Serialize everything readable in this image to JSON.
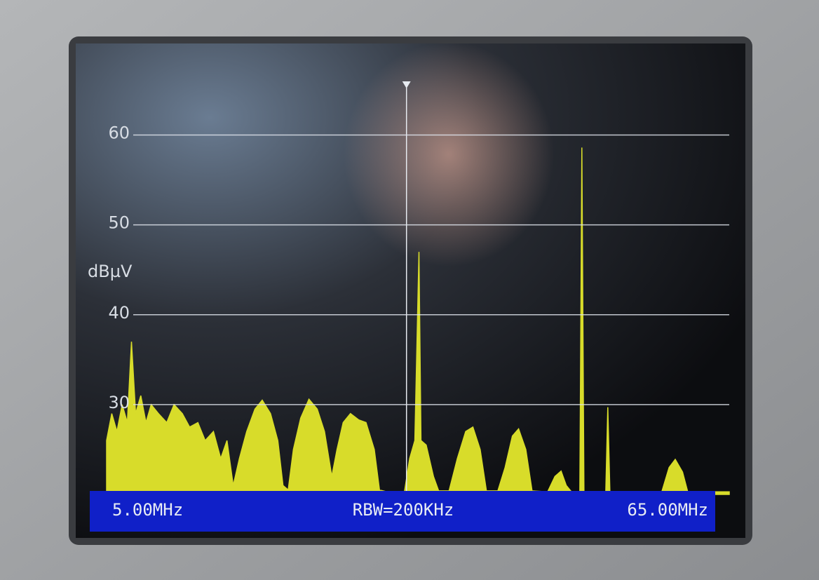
{
  "chart_data": {
    "type": "area",
    "y_label": "dBµV",
    "annotation": "RBW=200KHz",
    "xlim": [
      5,
      65
    ],
    "xticks": [
      {
        "value": 5,
        "label": "5.00MHz"
      },
      {
        "value": 65,
        "label": "65.00MHz"
      }
    ],
    "ylim": [
      20,
      68
    ],
    "yticks": [
      30,
      40,
      50,
      60
    ],
    "grid": true,
    "marker": 33.9,
    "color": "#d8dc2a",
    "x": [
      5,
      5.5,
      6,
      6.5,
      7,
      7.4,
      7.8,
      8.3,
      8.8,
      9.3,
      10,
      10.8,
      11.5,
      12.3,
      13,
      13.8,
      14.5,
      15.3,
      16,
      16.6,
      17.2,
      17.8,
      18.5,
      19.3,
      20,
      20.8,
      21.5,
      22,
      22.5,
      23,
      23.7,
      24.5,
      25.3,
      26,
      26.7,
      27.2,
      27.8,
      28.5,
      29.3,
      30,
      30.8,
      31.3,
      32,
      33,
      33.7,
      34.2,
      34.7,
      35.1,
      35.3,
      35.8,
      36.5,
      37,
      38,
      38.8,
      39.6,
      40.3,
      41,
      41.6,
      42.7,
      43.4,
      44.1,
      44.7,
      45.4,
      46,
      47.5,
      48.2,
      48.8,
      49.3,
      49.8,
      50.6,
      50.8,
      51,
      53.1,
      53.3,
      53.5,
      58.5,
      59.2,
      59.8,
      60.5,
      61,
      65
    ],
    "values": [
      26,
      29,
      27,
      30,
      28,
      37,
      29,
      31,
      28,
      30,
      29,
      28,
      30,
      29,
      27.5,
      28,
      26,
      27,
      24,
      26,
      21,
      24,
      27,
      29.5,
      30.5,
      29,
      26,
      21,
      20.5,
      25,
      28.5,
      30.6,
      29.5,
      27,
      22,
      25,
      28,
      29,
      28.3,
      28,
      25,
      20.5,
      20.3,
      20.3,
      20.3,
      24,
      26,
      47,
      26,
      25.5,
      22,
      20.4,
      20.4,
      24,
      27,
      27.5,
      25,
      20.4,
      20.4,
      23,
      26.5,
      27.3,
      25,
      20.4,
      20.3,
      22,
      22.6,
      21,
      20.3,
      20.3,
      58.6,
      20.3,
      20.3,
      29.7,
      20.3,
      20.3,
      23,
      23.9,
      22.5,
      20.3,
      20.3
    ]
  }
}
